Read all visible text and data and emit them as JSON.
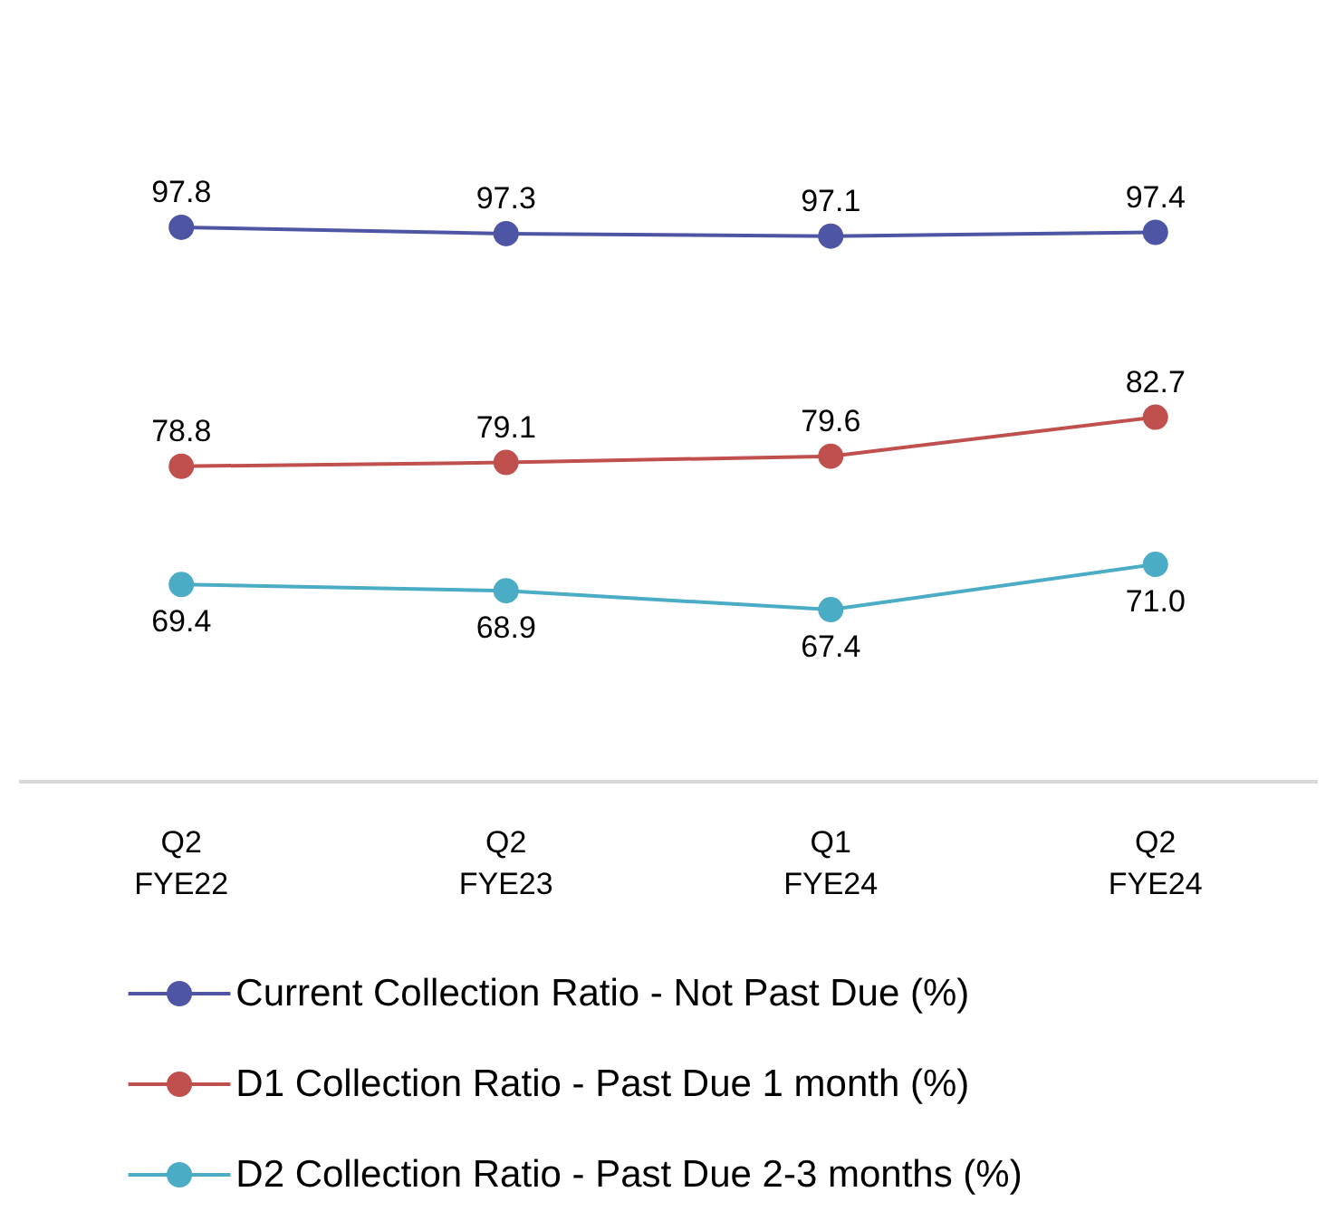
{
  "chart_data": {
    "type": "line",
    "categories": [
      "Q2\nFYE22",
      "Q2\nFYE23",
      "Q1\nFYE24",
      "Q2\nFYE24"
    ],
    "series": [
      {
        "name": "Current Collection Ratio - Not Past Due (%)",
        "color": "#4f55a5",
        "values": [
          97.8,
          97.3,
          97.1,
          97.4
        ],
        "value_labels": [
          "97.8",
          "97.3",
          "97.1",
          "97.4"
        ]
      },
      {
        "name": "D1 Collection Ratio - Past Due 1 month (%)",
        "color": "#c0504d",
        "values": [
          78.8,
          79.1,
          79.6,
          82.7
        ],
        "value_labels": [
          "78.8",
          "79.1",
          "79.6",
          "82.7"
        ]
      },
      {
        "name": "D2 Collection Ratio - Past Due 2-3 months (%)",
        "color": "#4bacc6",
        "values": [
          69.4,
          68.9,
          67.4,
          71.0
        ],
        "value_labels": [
          "69.4",
          "68.9",
          "67.4",
          "71.0"
        ]
      }
    ],
    "legend": "bottom",
    "grid": false,
    "marker": "circle",
    "line_style": "solid"
  }
}
